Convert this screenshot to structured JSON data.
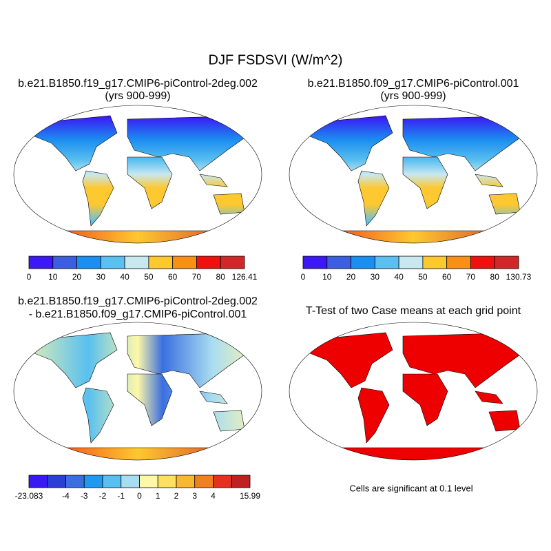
{
  "title": "DJF FSDSVI (W/m^2)",
  "panels": [
    {
      "title_lines": [
        "b.e21.B1850.f19_g17.CMIP6-piControl-2deg.002",
        "(yrs 900-999)"
      ]
    },
    {
      "title_lines": [
        "b.e21.B1850.f09_g17.CMIP6-piControl.001",
        "(yrs 900-999)"
      ]
    },
    {
      "title_lines": [
        "b.e21.B1850.f19_g17.CMIP6-piControl-2deg.002",
        "- b.e21.B1850.f09_g17.CMIP6-piControl.001"
      ]
    },
    {
      "title_lines": [
        "T-Test of two Case means at each grid point"
      ]
    }
  ],
  "colorbars": [
    {
      "colors": [
        "#3b18f5",
        "#3c5fe0",
        "#1b8ef0",
        "#5bc0f0",
        "#c8e8f0",
        "#fdc830",
        "#f89018",
        "#f01010",
        "#d02828"
      ],
      "labels": [
        "0",
        "10",
        "20",
        "30",
        "40",
        "50",
        "60",
        "70",
        "80",
        "126.41"
      ]
    },
    {
      "colors": [
        "#3b18f5",
        "#3c5fe0",
        "#1b8ef0",
        "#5bc0f0",
        "#c8e8f0",
        "#fdc830",
        "#f89018",
        "#f01010",
        "#d02828"
      ],
      "labels": [
        "0",
        "10",
        "20",
        "30",
        "40",
        "50",
        "60",
        "70",
        "80",
        "130.73"
      ]
    },
    {
      "colors": [
        "#3a17f5",
        "#2b3fd8",
        "#3a6fe0",
        "#1e9af0",
        "#58c0f0",
        "#a8dcf0",
        "#fff8a8",
        "#fde060",
        "#f8b830",
        "#f08020",
        "#e83020",
        "#c02020"
      ],
      "labels": [
        "-23.083",
        "-4",
        "-3",
        "-2",
        "-1",
        "0",
        "1",
        "2",
        "3",
        "4",
        "15.99"
      ]
    }
  ],
  "note": "Cells are significant at 0.1 level"
}
